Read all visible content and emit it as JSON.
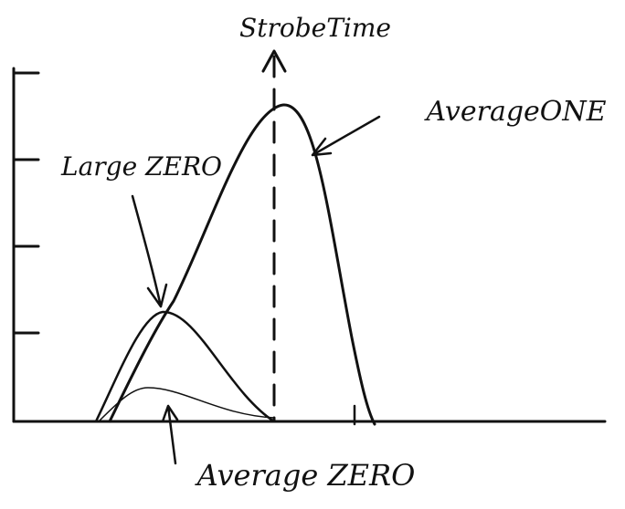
{
  "labels": {
    "strobe_time": "StrobeTime",
    "average_one": "AverageONE",
    "large_zero": "Large ZERO",
    "average_zero": "Average ZERO"
  }
}
